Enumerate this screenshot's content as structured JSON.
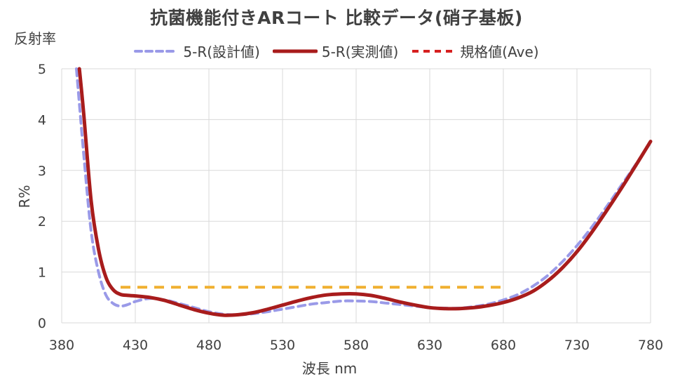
{
  "chart_data": {
    "type": "line",
    "title": "抗菌機能付きARコート 比較データ(硝子基板)",
    "ylabel_top": "反射率",
    "ylabel": "R%",
    "xlabel": "波長 nm",
    "xlim": [
      380,
      780
    ],
    "ylim": [
      0,
      5
    ],
    "x_ticks": [
      "380",
      "430",
      "480",
      "530",
      "580",
      "630",
      "680",
      "730",
      "780"
    ],
    "y_ticks": [
      "0",
      "1",
      "2",
      "3",
      "4",
      "5"
    ],
    "grid": true,
    "legend_position": "top",
    "series": [
      {
        "name": "5-R(設計値)",
        "style": "dashed",
        "color": "#9a9ae8",
        "points": [
          [
            390,
            5.0
          ],
          [
            395,
            3.3
          ],
          [
            400,
            1.8
          ],
          [
            405,
            1.0
          ],
          [
            410,
            0.55
          ],
          [
            415,
            0.38
          ],
          [
            420,
            0.33
          ],
          [
            425,
            0.36
          ],
          [
            430,
            0.42
          ],
          [
            440,
            0.48
          ],
          [
            450,
            0.45
          ],
          [
            460,
            0.38
          ],
          [
            470,
            0.3
          ],
          [
            480,
            0.22
          ],
          [
            490,
            0.17
          ],
          [
            500,
            0.16
          ],
          [
            510,
            0.18
          ],
          [
            520,
            0.22
          ],
          [
            530,
            0.27
          ],
          [
            540,
            0.32
          ],
          [
            550,
            0.37
          ],
          [
            560,
            0.4
          ],
          [
            570,
            0.43
          ],
          [
            580,
            0.43
          ],
          [
            590,
            0.42
          ],
          [
            600,
            0.39
          ],
          [
            610,
            0.36
          ],
          [
            620,
            0.33
          ],
          [
            630,
            0.3
          ],
          [
            640,
            0.29
          ],
          [
            650,
            0.29
          ],
          [
            660,
            0.32
          ],
          [
            670,
            0.37
          ],
          [
            680,
            0.45
          ],
          [
            690,
            0.56
          ],
          [
            700,
            0.72
          ],
          [
            710,
            0.93
          ],
          [
            720,
            1.2
          ],
          [
            730,
            1.52
          ],
          [
            740,
            1.88
          ],
          [
            750,
            2.28
          ],
          [
            760,
            2.7
          ],
          [
            770,
            3.12
          ],
          [
            780,
            3.55
          ]
        ]
      },
      {
        "name": "5-R(実測値)",
        "style": "solid",
        "color": "#a81c1c",
        "points": [
          [
            392,
            5.0
          ],
          [
            395,
            4.1
          ],
          [
            400,
            2.4
          ],
          [
            405,
            1.45
          ],
          [
            410,
            0.9
          ],
          [
            415,
            0.65
          ],
          [
            420,
            0.56
          ],
          [
            425,
            0.54
          ],
          [
            430,
            0.53
          ],
          [
            440,
            0.5
          ],
          [
            450,
            0.44
          ],
          [
            460,
            0.35
          ],
          [
            470,
            0.26
          ],
          [
            480,
            0.19
          ],
          [
            490,
            0.15
          ],
          [
            500,
            0.16
          ],
          [
            510,
            0.2
          ],
          [
            520,
            0.27
          ],
          [
            530,
            0.35
          ],
          [
            540,
            0.43
          ],
          [
            550,
            0.5
          ],
          [
            560,
            0.55
          ],
          [
            570,
            0.57
          ],
          [
            580,
            0.57
          ],
          [
            590,
            0.54
          ],
          [
            600,
            0.48
          ],
          [
            610,
            0.41
          ],
          [
            620,
            0.35
          ],
          [
            630,
            0.3
          ],
          [
            640,
            0.28
          ],
          [
            650,
            0.28
          ],
          [
            660,
            0.3
          ],
          [
            670,
            0.34
          ],
          [
            680,
            0.4
          ],
          [
            690,
            0.49
          ],
          [
            700,
            0.62
          ],
          [
            710,
            0.82
          ],
          [
            720,
            1.08
          ],
          [
            730,
            1.4
          ],
          [
            740,
            1.78
          ],
          [
            750,
            2.2
          ],
          [
            760,
            2.64
          ],
          [
            770,
            3.1
          ],
          [
            780,
            3.57
          ]
        ]
      },
      {
        "name": "規格値(Ave)",
        "style": "dashed",
        "color": "#f0b030",
        "legend_color": "#d62020",
        "points": [
          [
            420,
            0.7
          ],
          [
            680,
            0.7
          ]
        ]
      }
    ]
  }
}
